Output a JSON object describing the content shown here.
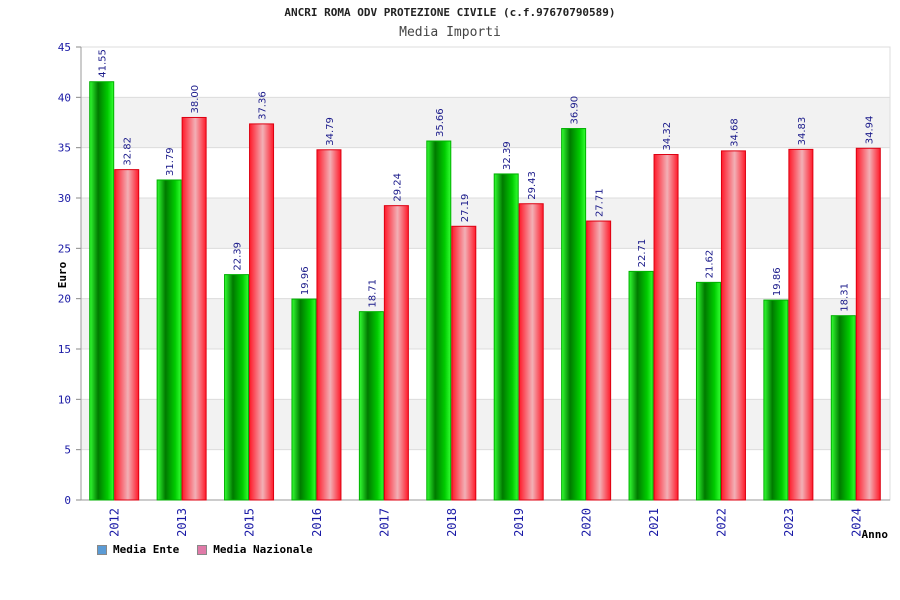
{
  "title": "ANCRI ROMA ODV PROTEZIONE CIVILE (c.f.97670790589)",
  "subtitle": "Media Importi",
  "chart_data": {
    "type": "bar",
    "xlabel": "Anno",
    "ylabel": "Euro",
    "ylim": [
      0,
      45
    ],
    "yticks": [
      0,
      5,
      10,
      15,
      20,
      25,
      30,
      35,
      40,
      45
    ],
    "categories": [
      "2012",
      "2013",
      "2015",
      "2016",
      "2017",
      "2018",
      "2019",
      "2020",
      "2021",
      "2022",
      "2023",
      "2024"
    ],
    "series": [
      {
        "name": "Media Ente",
        "color": "#00cc00",
        "legend_color": "#5b9bd5",
        "values": [
          41.55,
          31.79,
          22.39,
          19.96,
          18.71,
          35.66,
          32.39,
          36.9,
          22.71,
          21.62,
          19.86,
          18.31
        ]
      },
      {
        "name": "Media Nazionale",
        "color": "#ee1122",
        "legend_color": "#e07aa8",
        "values": [
          32.82,
          38.0,
          37.36,
          34.79,
          29.24,
          27.19,
          29.43,
          27.71,
          34.32,
          34.68,
          34.83,
          34.94
        ]
      }
    ],
    "data_labels": {
      "Media Ente": [
        "41.55",
        "31.79",
        "22.39",
        "19.96",
        "18.71",
        "35.66",
        "32.39",
        "36.90",
        "22.71",
        "21.62",
        "19.86",
        "18.31"
      ],
      "Media Nazionale": [
        "32.82",
        "38.00",
        "37.36",
        "34.79",
        "29.24",
        "27.19",
        "29.43",
        "27.71",
        "34.32",
        "34.68",
        "34.83",
        "34.94"
      ]
    },
    "grid": true,
    "legend_position": "bottom-left"
  }
}
